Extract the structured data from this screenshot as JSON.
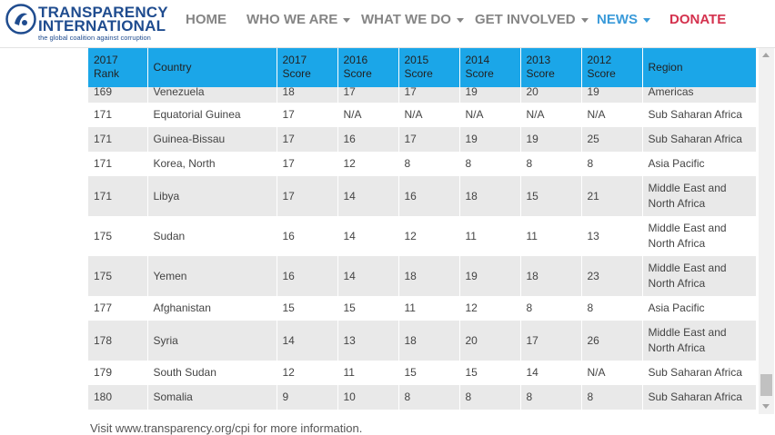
{
  "header": {
    "logo_line1": "TRANSPARENCY",
    "logo_line2": "INTERNATIONAL",
    "logo_tagline": "the global coalition against corruption",
    "nav": {
      "home": "HOME",
      "who_we_are": "WHO WE ARE",
      "what_we_do": "WHAT WE DO",
      "get_involved": "GET INVOLVED",
      "news": "NEWS",
      "donate": "DONATE"
    },
    "colors": {
      "brand": "#1f4c8f",
      "nav": "#858585",
      "news": "#3a9ad9",
      "donate": "#d4324e"
    }
  },
  "table": {
    "header_color": "#1ba6e8",
    "columns": [
      "2017 Rank",
      "Country",
      "2017 Score",
      "2016 Score",
      "2015 Score",
      "2014 Score",
      "2013 Score",
      "2012 Score",
      "Region"
    ],
    "rows": [
      [
        "169",
        "Venezuela",
        "18",
        "17",
        "17",
        "19",
        "20",
        "19",
        "Americas"
      ],
      [
        "171",
        "Equatorial Guinea",
        "17",
        "N/A",
        "N/A",
        "N/A",
        "N/A",
        "N/A",
        "Sub Saharan Africa"
      ],
      [
        "171",
        "Guinea-Bissau",
        "17",
        "16",
        "17",
        "19",
        "19",
        "25",
        "Sub Saharan Africa"
      ],
      [
        "171",
        "Korea, North",
        "17",
        "12",
        "8",
        "8",
        "8",
        "8",
        "Asia Pacific"
      ],
      [
        "171",
        "Libya",
        "17",
        "14",
        "16",
        "18",
        "15",
        "21",
        "Middle East and North Africa"
      ],
      [
        "175",
        "Sudan",
        "16",
        "14",
        "12",
        "11",
        "11",
        "13",
        "Middle East and North Africa"
      ],
      [
        "175",
        "Yemen",
        "16",
        "14",
        "18",
        "19",
        "18",
        "23",
        "Middle East and North Africa"
      ],
      [
        "177",
        "Afghanistan",
        "15",
        "15",
        "11",
        "12",
        "8",
        "8",
        "Asia Pacific"
      ],
      [
        "178",
        "Syria",
        "14",
        "13",
        "18",
        "20",
        "17",
        "26",
        "Middle East and North Africa"
      ],
      [
        "179",
        "South Sudan",
        "12",
        "11",
        "15",
        "15",
        "14",
        "N/A",
        "Sub Saharan Africa"
      ],
      [
        "180",
        "Somalia",
        "9",
        "10",
        "8",
        "8",
        "8",
        "8",
        "Sub Saharan Africa"
      ]
    ]
  },
  "footer": {
    "visit_text": "Visit www.transparency.org/cpi for more information."
  }
}
